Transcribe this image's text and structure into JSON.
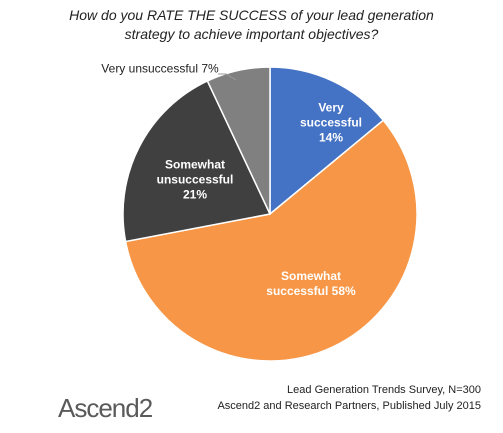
{
  "chart_data": {
    "type": "pie",
    "title": "How do you RATE THE SUCCESS of your lead generation strategy to achieve important objectives?",
    "categories": [
      "Very successful",
      "Somewhat successful",
      "Somewhat unsuccessful",
      "Very unsuccessful"
    ],
    "values": [
      14,
      58,
      21,
      7
    ],
    "value_labels": [
      "14%",
      "58%",
      "21%",
      "7%"
    ],
    "colors": [
      "#4472c4",
      "#f79646",
      "#404040",
      "#808080"
    ],
    "source": [
      "Lead Generation Trends Survey, N=300",
      "Ascend2 and Research Partners, Published July 2015"
    ],
    "logo": "Ascend2"
  }
}
